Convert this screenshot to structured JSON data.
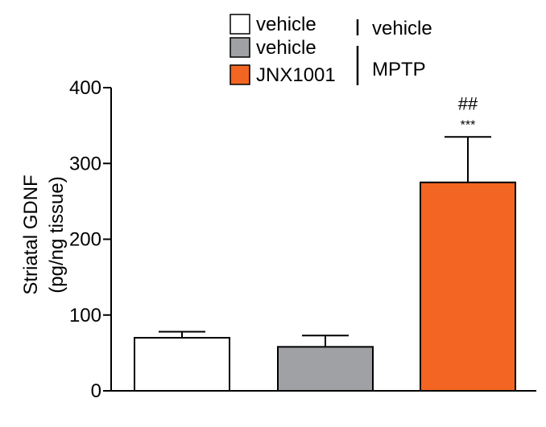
{
  "chart_data": {
    "type": "bar",
    "ylabel": [
      "Striatal GDNF",
      "(pg/ng tissue)"
    ],
    "ylim": [
      0,
      400
    ],
    "yticks": [
      0,
      100,
      200,
      300,
      400
    ],
    "grid": false,
    "legend_position": "top-center",
    "bars": [
      {
        "legend_label": "vehicle",
        "group": "vehicle",
        "value": 70,
        "error": 8,
        "color": "#ffffff",
        "significance": []
      },
      {
        "legend_label": "vehicle",
        "group": "MPTP",
        "value": 58,
        "error": 15,
        "color": "#a0a1a4",
        "significance": []
      },
      {
        "legend_label": "JNX1001",
        "group": "MPTP",
        "value": 275,
        "error": 60,
        "color": "#f26522",
        "significance": [
          "##",
          "***"
        ]
      }
    ],
    "legend_groups": [
      "vehicle",
      "MPTP"
    ]
  }
}
